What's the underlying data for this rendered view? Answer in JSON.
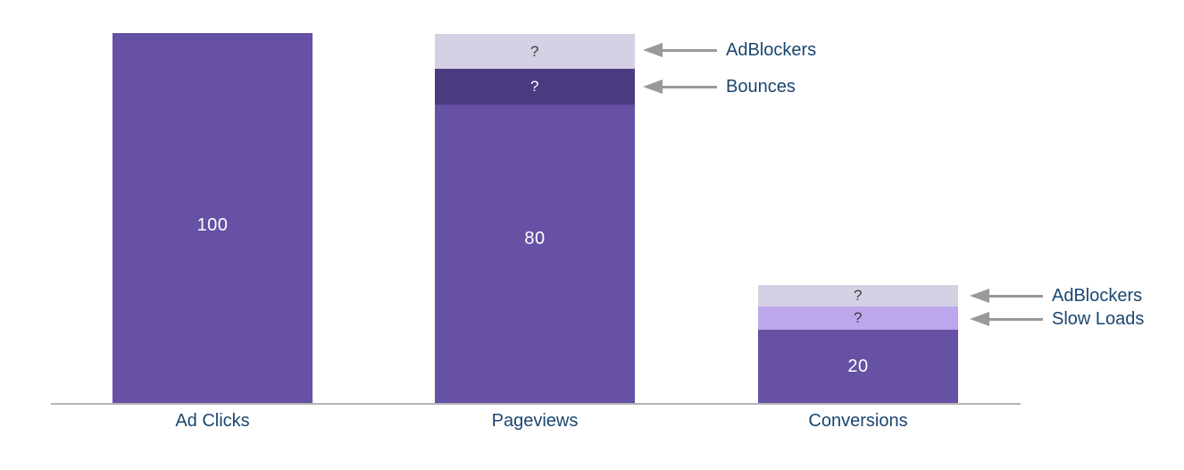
{
  "chart_data": {
    "type": "bar",
    "variant": "stacked",
    "orientation": "vertical",
    "title": "",
    "xlabel": "",
    "ylabel": "",
    "ylim": [
      0,
      100
    ],
    "grid": false,
    "legend": false,
    "categories": [
      "Ad Clicks",
      "Pageviews",
      "Conversions"
    ],
    "bars": [
      {
        "category": "Ad Clicks",
        "segments": [
          {
            "name": "Ad Clicks",
            "label": "100",
            "value": 100,
            "color": "#6651a4",
            "label_color": "#ffffff"
          }
        ]
      },
      {
        "category": "Pageviews",
        "segments": [
          {
            "name": "Pageviews",
            "label": "80",
            "value": 80,
            "color": "#6651a4",
            "label_color": "#ffffff"
          },
          {
            "name": "Bounces",
            "label": "?",
            "value_estimate": 10,
            "color": "#4b3a80",
            "label_color": "#ffffff"
          },
          {
            "name": "AdBlockers",
            "label": "?",
            "value_estimate": 10,
            "color": "#d5d0e4",
            "label_color": "#3d3d3d"
          }
        ]
      },
      {
        "category": "Conversions",
        "segments": [
          {
            "name": "Conversions",
            "label": "20",
            "value": 20,
            "color": "#6651a4",
            "label_color": "#ffffff"
          },
          {
            "name": "Slow Loads",
            "label": "?",
            "value_estimate": 6,
            "color": "#bca7ec",
            "label_color": "#3d3d3d"
          },
          {
            "name": "AdBlockers",
            "label": "?",
            "value_estimate": 6,
            "color": "#d5d0e4",
            "label_color": "#3d3d3d"
          }
        ]
      }
    ],
    "annotations": [
      {
        "text": "AdBlockers",
        "points_to": "Pageviews AdBlockers segment",
        "arrow_color": "#999999",
        "text_color": "#1a466f"
      },
      {
        "text": "Bounces",
        "points_to": "Pageviews Bounces segment",
        "arrow_color": "#999999",
        "text_color": "#1a466f"
      },
      {
        "text": "AdBlockers",
        "points_to": "Conversions AdBlockers segment",
        "arrow_color": "#999999",
        "text_color": "#1a466f"
      },
      {
        "text": "Slow Loads",
        "points_to": "Conversions Slow Loads segment",
        "arrow_color": "#999999",
        "text_color": "#1a466f"
      }
    ],
    "axis": {
      "baseline_color": "#b4b4b4",
      "category_label_color": "#1a466f"
    }
  }
}
